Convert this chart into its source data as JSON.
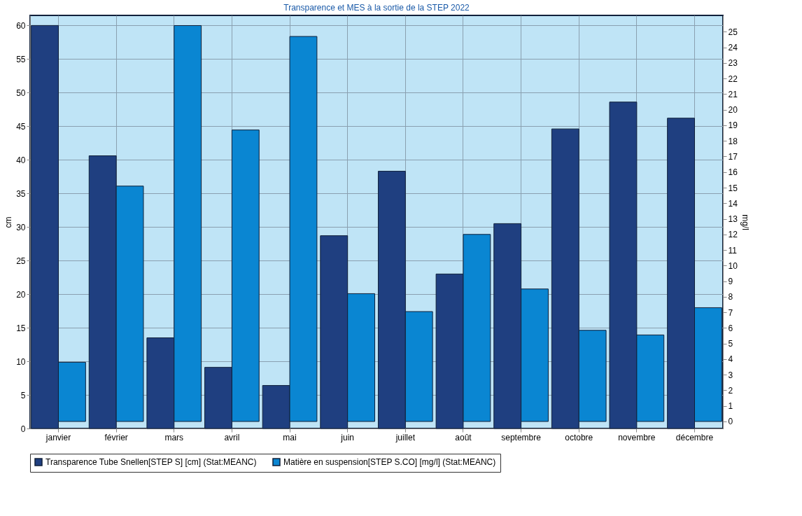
{
  "chart_data": {
    "type": "bar",
    "title": "Transparence et MES à la sortie de la STEP 2022",
    "ylabel": "cm",
    "y2label": "mg/l",
    "categories": [
      "janvier",
      "février",
      "mars",
      "avril",
      "mai",
      "juin",
      "juillet",
      "août",
      "septembre",
      "octobre",
      "novembre",
      "décembre"
    ],
    "series": [
      {
        "name": "Transparence Tube Snellen[STEP S] [cm] (Stat:MEANC)",
        "color": "#1f3f80",
        "values": [
          60,
          40.6,
          13.5,
          9.1,
          6.4,
          28.7,
          38.3,
          23.0,
          30.5,
          44.6,
          48.6,
          46.2
        ]
      },
      {
        "name": "Matière en suspension[STEP S.CO] [mg/l] (Stat:MEANC)",
        "color": "#0a86d2",
        "axis": "y2",
        "values": [
          3.8,
          15.1,
          25.4,
          18.7,
          24.7,
          8.2,
          7.05,
          12.0,
          8.5,
          5.85,
          5.55,
          7.3
        ]
      }
    ],
    "ylim": [
      0,
      61.5
    ],
    "yticks": [
      0,
      5,
      10,
      15,
      20,
      25,
      30,
      35,
      40,
      45,
      50,
      55,
      60
    ],
    "y2lim": [
      -0.45,
      26.05
    ],
    "y2ticks": [
      0,
      1,
      2,
      3,
      4,
      5,
      6,
      7,
      8,
      9,
      10,
      11,
      12,
      13,
      14,
      15,
      16,
      17,
      18,
      19,
      20,
      21,
      22,
      23,
      24,
      25
    ],
    "grid": true,
    "legend": "bottom"
  }
}
